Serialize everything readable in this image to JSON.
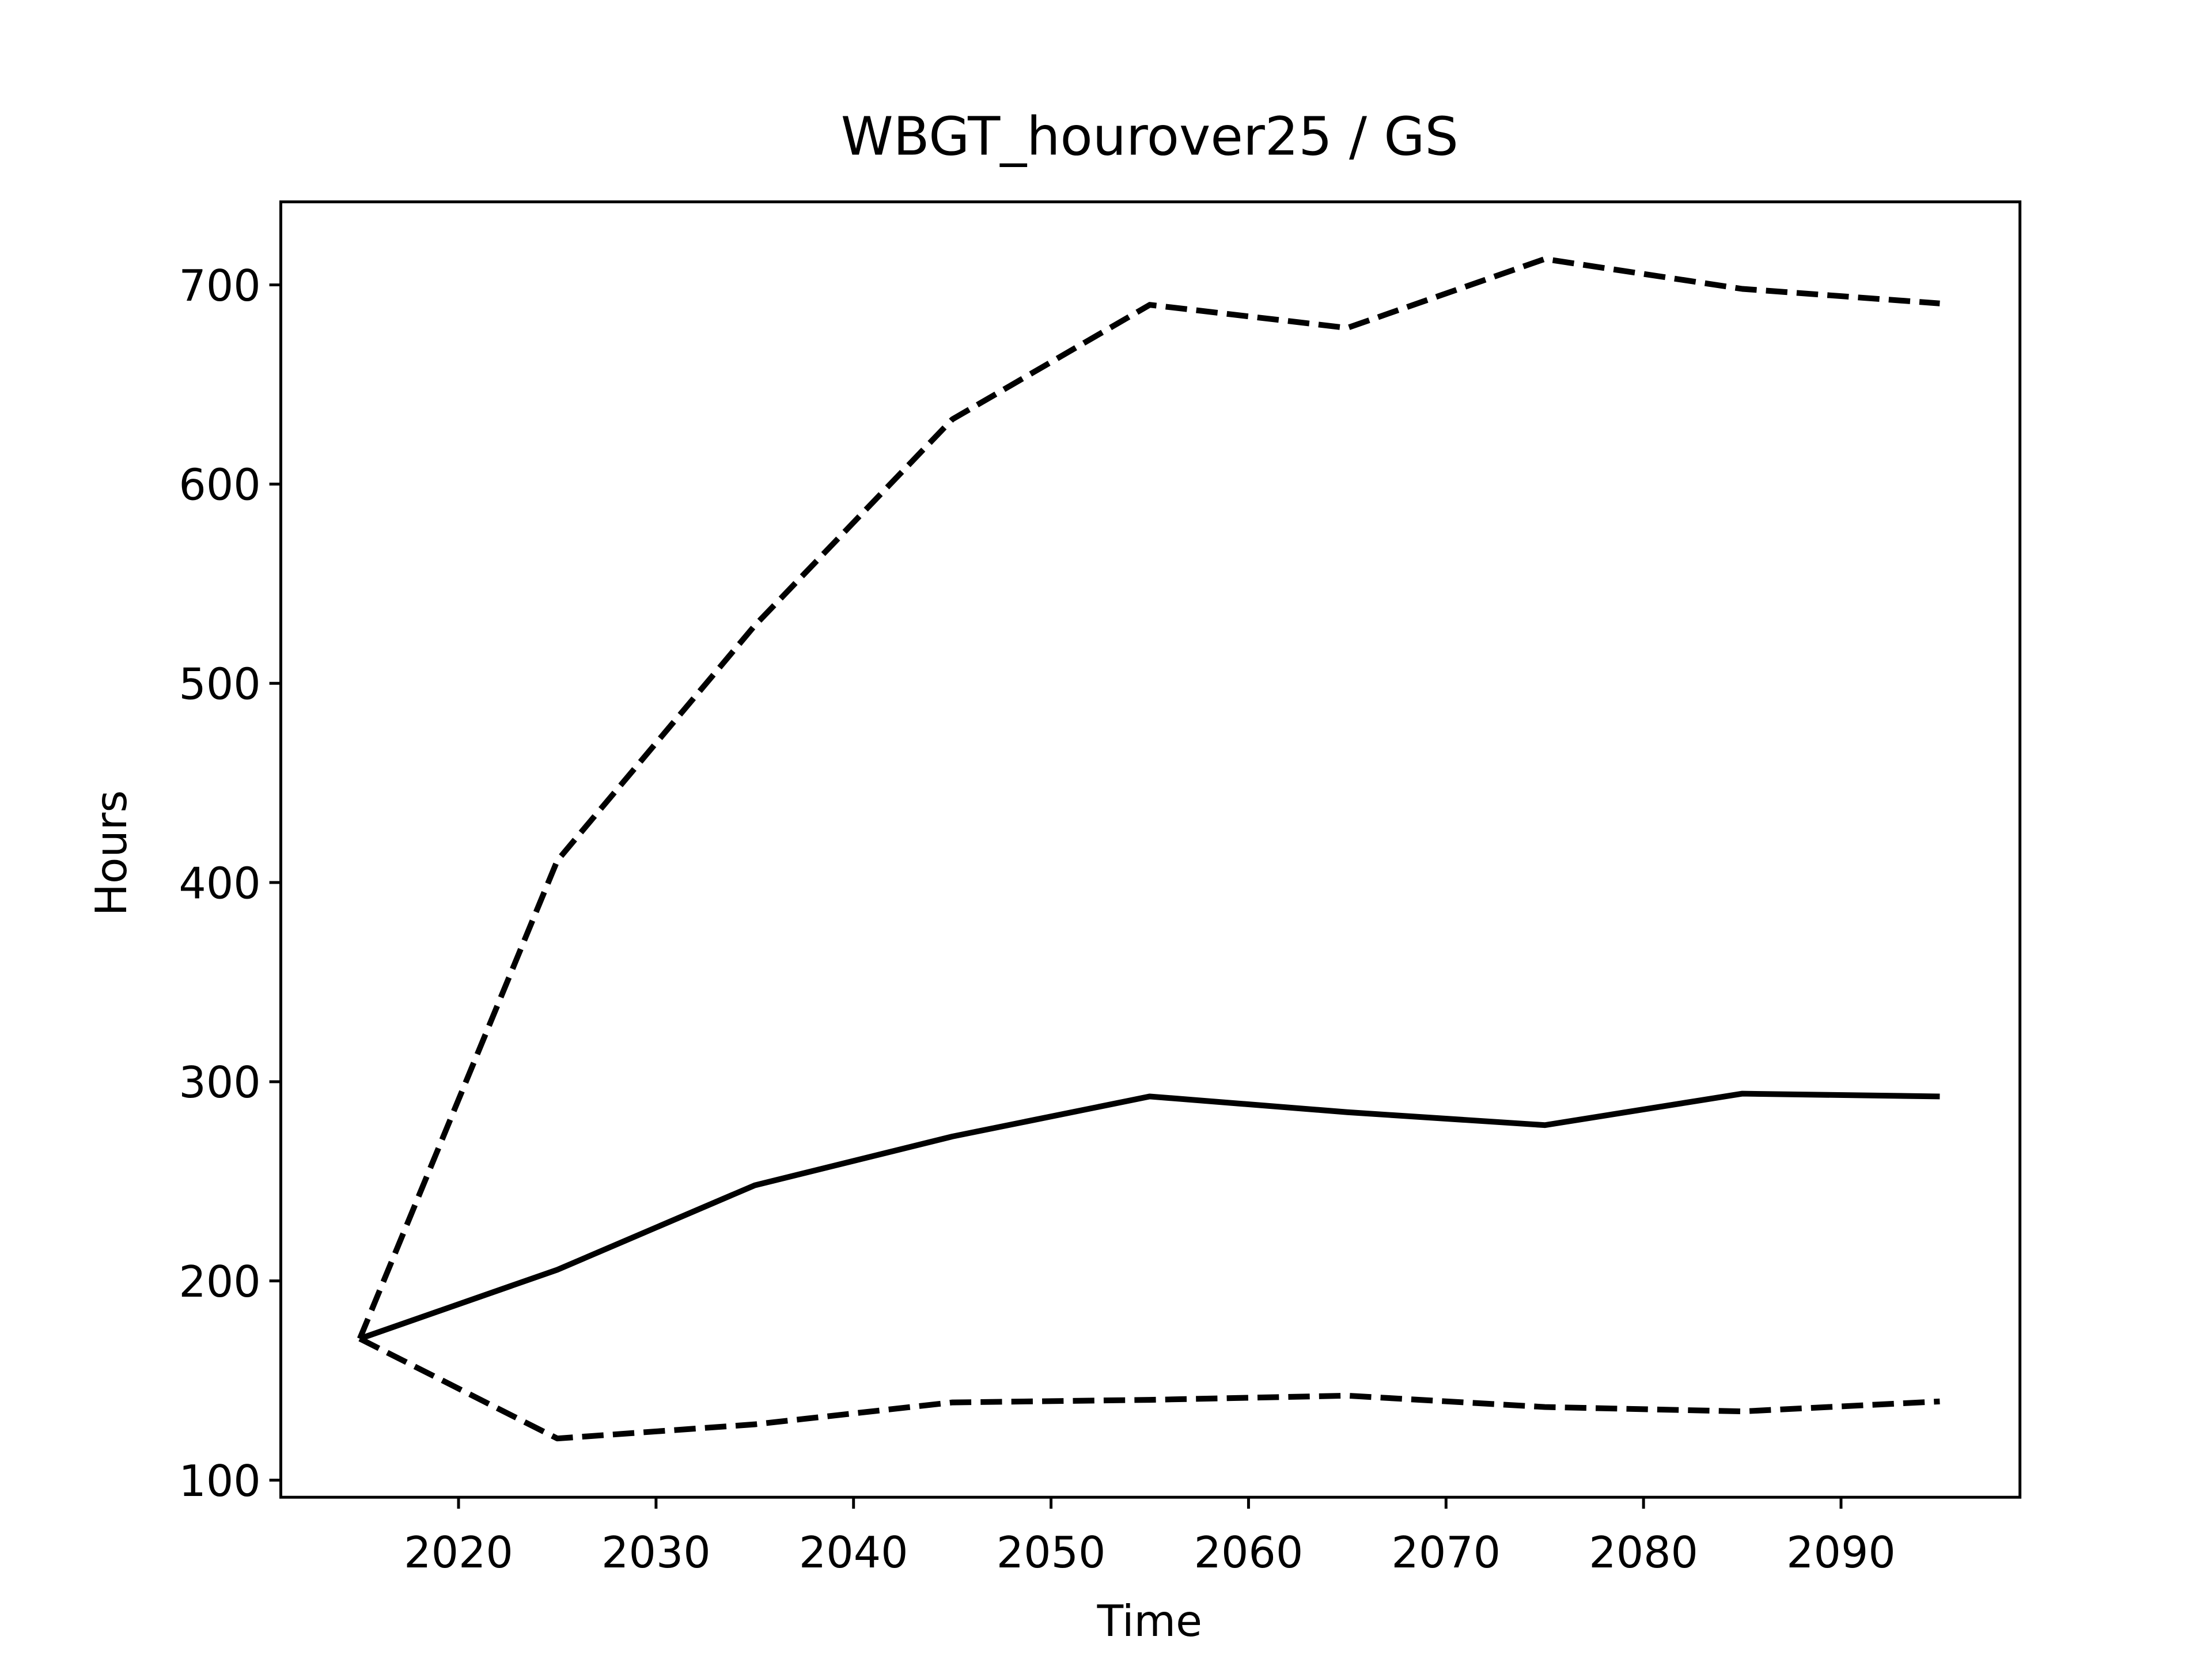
{
  "chart_data": {
    "type": "line",
    "title": "WBGT_hourover25 / GS",
    "xlabel": "Time",
    "ylabel": "Hours",
    "x": [
      2015,
      2025,
      2035,
      2045,
      2055,
      2065,
      2075,
      2085,
      2095
    ],
    "series": [
      {
        "color": "#000000",
        "dash": false,
        "values": [
          171,
          205.6,
          248,
          272.5,
          292.6,
          284.7,
          278.2,
          294,
          292.6
        ]
      },
      {
        "color": "#000000",
        "dash": true,
        "values": [
          171,
          411,
          529,
          632.5,
          690,
          678.4,
          713,
          698,
          690.7
        ]
      },
      {
        "color": "#000000",
        "dash": true,
        "values": [
          171,
          120.9,
          128,
          139,
          140.3,
          142.4,
          136.7,
          134.5,
          139.5
        ]
      }
    ],
    "xlim": [
      2011,
      2099.06
    ],
    "ylim": [
      91.4,
      741.7
    ],
    "xticks": [
      2020,
      2030,
      2040,
      2050,
      2060,
      2070,
      2080,
      2090
    ],
    "yticks": [
      100,
      200,
      300,
      400,
      500,
      600,
      700
    ],
    "grid": false
  }
}
